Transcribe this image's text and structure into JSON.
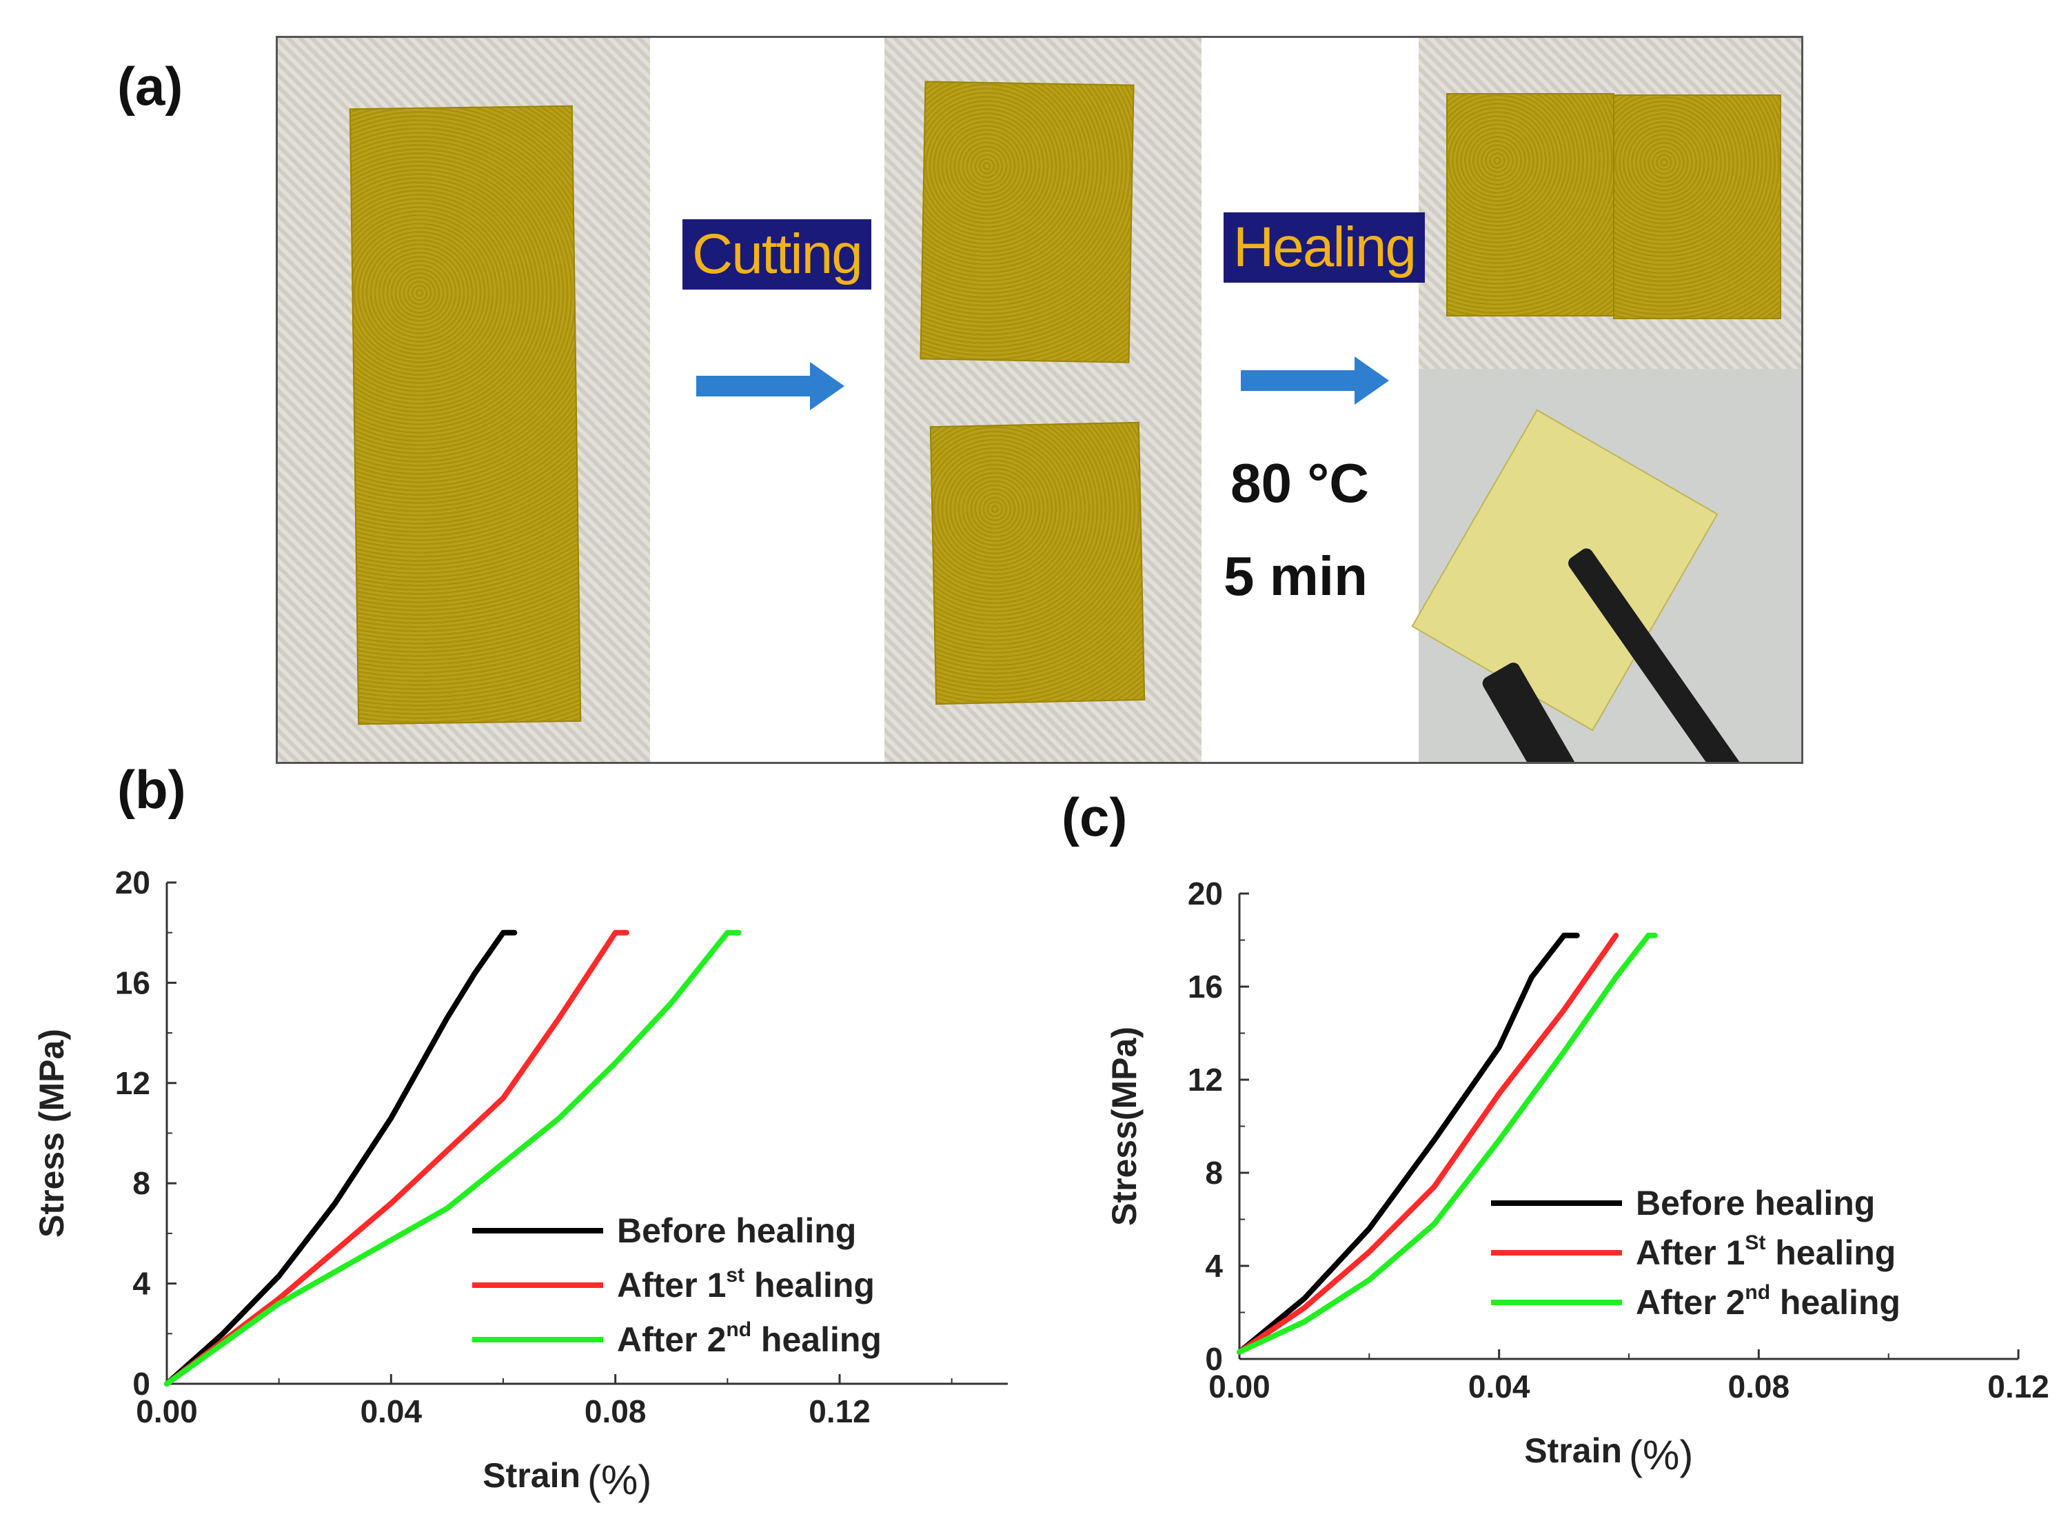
{
  "panels": {
    "a": "(a)",
    "b": "(b)",
    "c": "(c)"
  },
  "process": {
    "cutting_label": "Cutting",
    "healing_label": "Healing",
    "temperature": "80 °C",
    "time": "5 min"
  },
  "colors": {
    "before": "#000000",
    "after1": "#ff2a2a",
    "after2": "#22ee22",
    "film": "#b59b0e",
    "arrow": "#2e7fd0",
    "label_bg": "#1a1a7a",
    "label_text": "#f2b21a"
  },
  "chart_data": [
    {
      "type": "line",
      "panel": "(b)",
      "xlabel": "Strain",
      "xunit": "(%)",
      "ylabel": "Stress (MPa)",
      "xlim": [
        0,
        0.15
      ],
      "ylim": [
        0,
        20
      ],
      "xticks": [
        "0.00",
        "0.04",
        "0.08",
        "0.12"
      ],
      "xtick_values": [
        0,
        0.04,
        0.08,
        0.12
      ],
      "yticks": [
        "0",
        "4",
        "8",
        "12",
        "16",
        "20"
      ],
      "ytick_values": [
        0,
        4,
        8,
        12,
        16,
        20
      ],
      "legend_position": "center-right",
      "series": [
        {
          "name": "Before healing",
          "legend_main": "Before healing",
          "legend_sup": "",
          "legend_tail": "",
          "color_key": "before",
          "points": [
            [
              0,
              0
            ],
            [
              0.01,
              2
            ],
            [
              0.02,
              4.3
            ],
            [
              0.03,
              7.2
            ],
            [
              0.04,
              10.6
            ],
            [
              0.05,
              14.6
            ],
            [
              0.055,
              16.4
            ],
            [
              0.06,
              18
            ],
            [
              0.062,
              18
            ]
          ]
        },
        {
          "name": "After 1st healing",
          "legend_main": "After 1",
          "legend_sup": "st",
          "legend_tail": " healing",
          "color_key": "after1",
          "points": [
            [
              0,
              0
            ],
            [
              0.02,
              3.4
            ],
            [
              0.04,
              7.2
            ],
            [
              0.06,
              11.4
            ],
            [
              0.07,
              14.6
            ],
            [
              0.08,
              18
            ],
            [
              0.082,
              18
            ]
          ]
        },
        {
          "name": "After 2nd healing",
          "legend_main": "After 2",
          "legend_sup": "nd",
          "legend_tail": " healing",
          "color_key": "after2",
          "points": [
            [
              0,
              0
            ],
            [
              0.02,
              3.2
            ],
            [
              0.05,
              7.0
            ],
            [
              0.07,
              10.6
            ],
            [
              0.08,
              12.8
            ],
            [
              0.09,
              15.2
            ],
            [
              0.1,
              18
            ],
            [
              0.102,
              18
            ]
          ]
        }
      ]
    },
    {
      "type": "line",
      "panel": "(c)",
      "xlabel": "Strain",
      "xunit": "(%)",
      "ylabel": "Stress(MPa)",
      "xlim": [
        0,
        0.12
      ],
      "ylim": [
        0,
        20
      ],
      "xticks": [
        "0.00",
        "0.04",
        "0.08",
        "0.12"
      ],
      "xtick_values": [
        0,
        0.04,
        0.08,
        0.12
      ],
      "yticks": [
        "0",
        "4",
        "8",
        "12",
        "16",
        "20"
      ],
      "ytick_values": [
        0,
        4,
        8,
        12,
        16,
        20
      ],
      "legend_position": "center-right",
      "series": [
        {
          "name": "Before healing",
          "legend_main": "Before healing",
          "legend_sup": "",
          "legend_tail": "",
          "color_key": "before",
          "points": [
            [
              0,
              0.3
            ],
            [
              0.01,
              2.6
            ],
            [
              0.02,
              5.6
            ],
            [
              0.03,
              9.4
            ],
            [
              0.04,
              13.4
            ],
            [
              0.045,
              16.4
            ],
            [
              0.05,
              18.2
            ],
            [
              0.052,
              18.2
            ]
          ]
        },
        {
          "name": "After 1St healing",
          "legend_main": "After 1",
          "legend_sup": "St",
          "legend_tail": " healing",
          "color_key": "after1",
          "points": [
            [
              0,
              0.3
            ],
            [
              0.01,
              2.2
            ],
            [
              0.02,
              4.6
            ],
            [
              0.03,
              7.4
            ],
            [
              0.04,
              11.4
            ],
            [
              0.05,
              15
            ],
            [
              0.058,
              18.2
            ]
          ]
        },
        {
          "name": "After 2nd healing",
          "legend_main": "After 2",
          "legend_sup": "nd",
          "legend_tail": " healing",
          "color_key": "after2",
          "points": [
            [
              0,
              0.3
            ],
            [
              0.01,
              1.6
            ],
            [
              0.02,
              3.4
            ],
            [
              0.03,
              5.8
            ],
            [
              0.04,
              9.4
            ],
            [
              0.05,
              13.2
            ],
            [
              0.058,
              16.4
            ],
            [
              0.063,
              18.2
            ],
            [
              0.064,
              18.2
            ]
          ]
        }
      ]
    }
  ]
}
